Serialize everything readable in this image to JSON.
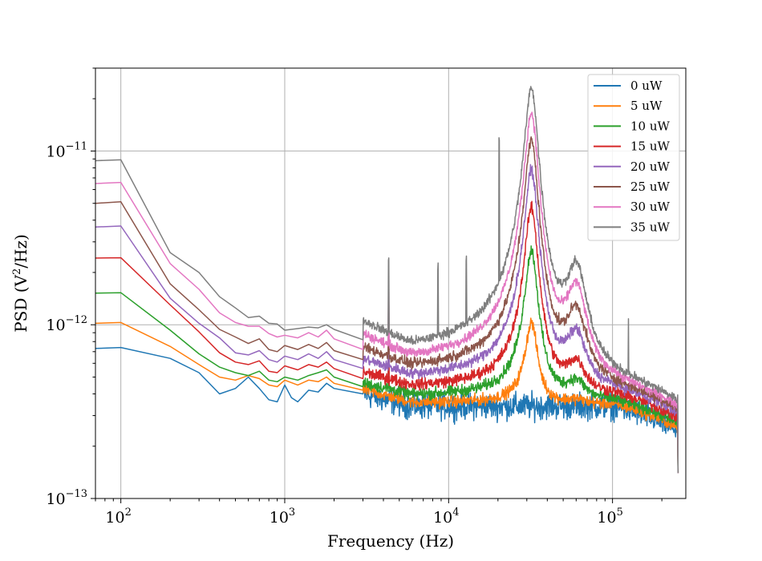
{
  "chart_data": {
    "type": "line",
    "title": "",
    "xlabel": "Frequency (Hz)",
    "ylabel_main": "PSD (V",
    "ylabel_sup": "2",
    "ylabel_tail": "/Hz)",
    "xscale": "log",
    "yscale": "log",
    "xlim": [
      70,
      280000
    ],
    "ylim": [
      1e-13,
      3e-11
    ],
    "grid": true,
    "legend_position": "top-right",
    "x_ticks": [
      {
        "value": 100,
        "base": "10",
        "exp": "2"
      },
      {
        "value": 1000,
        "base": "10",
        "exp": "3"
      },
      {
        "value": 10000,
        "base": "10",
        "exp": "4"
      },
      {
        "value": 100000,
        "base": "10",
        "exp": "5"
      }
    ],
    "y_ticks": [
      {
        "value": 1e-13,
        "base": "10",
        "exp": "−13"
      },
      {
        "value": 1e-12,
        "base": "10",
        "exp": "−12"
      },
      {
        "value": 1e-11,
        "base": "10",
        "exp": "−11"
      }
    ],
    "series": [
      {
        "name": "0 uW",
        "color": "#1f77b4",
        "low_points": [
          [
            70,
            7.3e-13
          ],
          [
            100,
            7.4e-13
          ],
          [
            200,
            6.4e-13
          ],
          [
            300,
            5.3e-13
          ],
          [
            400,
            4e-13
          ],
          [
            500,
            4.3e-13
          ],
          [
            600,
            5e-13
          ],
          [
            700,
            4.3e-13
          ],
          [
            800,
            3.7e-13
          ],
          [
            900,
            3.6e-13
          ],
          [
            1000,
            4.5e-13
          ],
          [
            1100,
            3.8e-13
          ],
          [
            1200,
            3.6e-13
          ],
          [
            1400,
            4.2e-13
          ],
          [
            1600,
            4.1e-13
          ],
          [
            1800,
            4.6e-13
          ],
          [
            2000,
            4.3e-13
          ],
          [
            3000,
            4e-13
          ]
        ],
        "baseline": 3.4e-13,
        "peak_amp": 0.0,
        "harm_amp": 0.0,
        "spikes": [],
        "noise": 0.22
      },
      {
        "name": "5 uW",
        "color": "#ff7f0e",
        "low_points": [
          [
            70,
            1.02e-12
          ],
          [
            100,
            1.03e-12
          ],
          [
            200,
            7.5e-13
          ],
          [
            300,
            5.9e-13
          ],
          [
            400,
            5e-13
          ],
          [
            500,
            4.8e-13
          ],
          [
            600,
            5.1e-13
          ],
          [
            700,
            4.9e-13
          ],
          [
            800,
            4.5e-13
          ],
          [
            900,
            4.4e-13
          ],
          [
            1000,
            4.8e-13
          ],
          [
            1200,
            4.5e-13
          ],
          [
            1400,
            4.8e-13
          ],
          [
            1600,
            4.7e-13
          ],
          [
            1800,
            5e-13
          ],
          [
            2000,
            4.6e-13
          ],
          [
            3000,
            4.2e-13
          ]
        ],
        "baseline": 3.5e-13,
        "peak_amp": 6.8e-13,
        "harm_amp": 2e-14,
        "spikes": [],
        "noise": 0.1
      },
      {
        "name": "10 uW",
        "color": "#2ca02c",
        "low_points": [
          [
            70,
            1.52e-12
          ],
          [
            100,
            1.53e-12
          ],
          [
            200,
            9.3e-13
          ],
          [
            300,
            6.8e-13
          ],
          [
            400,
            5.7e-13
          ],
          [
            500,
            5.3e-13
          ],
          [
            600,
            5.1e-13
          ],
          [
            700,
            5.4e-13
          ],
          [
            800,
            4.8e-13
          ],
          [
            900,
            4.7e-13
          ],
          [
            1000,
            5e-13
          ],
          [
            1200,
            4.8e-13
          ],
          [
            1400,
            5.1e-13
          ],
          [
            1600,
            5.3e-13
          ],
          [
            1800,
            5.5e-13
          ],
          [
            2000,
            5e-13
          ],
          [
            3000,
            4.4e-13
          ]
        ],
        "baseline": 3.7e-13,
        "peak_amp": 2.3e-12,
        "harm_amp": 1e-13,
        "spikes": [
          [
            4300,
            5e-13
          ]
        ],
        "noise": 0.1
      },
      {
        "name": "15 uW",
        "color": "#d62728",
        "low_points": [
          [
            70,
            2.42e-12
          ],
          [
            100,
            2.43e-12
          ],
          [
            200,
            1.3e-12
          ],
          [
            300,
            9.1e-13
          ],
          [
            400,
            6.9e-13
          ],
          [
            500,
            6.1e-13
          ],
          [
            600,
            5.9e-13
          ],
          [
            700,
            6.2e-13
          ],
          [
            800,
            5.4e-13
          ],
          [
            900,
            5.3e-13
          ],
          [
            1000,
            5.8e-13
          ],
          [
            1200,
            5.5e-13
          ],
          [
            1400,
            5.9e-13
          ],
          [
            1600,
            5.7e-13
          ],
          [
            1800,
            6.1e-13
          ],
          [
            2000,
            5.6e-13
          ],
          [
            3000,
            4.9e-13
          ]
        ],
        "baseline": 4e-13,
        "peak_amp": 4.3e-12,
        "harm_amp": 2e-13,
        "spikes": [
          [
            4300,
            6e-13
          ]
        ],
        "noise": 0.1
      },
      {
        "name": "20 uW",
        "color": "#9467bd",
        "low_points": [
          [
            70,
            3.65e-12
          ],
          [
            100,
            3.7e-12
          ],
          [
            200,
            1.42e-12
          ],
          [
            300,
            1.02e-12
          ],
          [
            400,
            8.4e-13
          ],
          [
            500,
            6.9e-13
          ],
          [
            600,
            6.7e-13
          ],
          [
            700,
            7.1e-13
          ],
          [
            800,
            6.3e-13
          ],
          [
            900,
            6.1e-13
          ],
          [
            1000,
            6.6e-13
          ],
          [
            1200,
            6.3e-13
          ],
          [
            1400,
            6.8e-13
          ],
          [
            1600,
            6.4e-13
          ],
          [
            1800,
            7e-13
          ],
          [
            2000,
            6.3e-13
          ],
          [
            3000,
            5.6e-13
          ]
        ],
        "baseline": 4.3e-13,
        "peak_amp": 7.3e-12,
        "harm_amp": 4.5e-13,
        "spikes": [
          [
            4300,
            7e-13
          ]
        ],
        "noise": 0.09
      },
      {
        "name": "25 uW",
        "color": "#8c564b",
        "low_points": [
          [
            70,
            5e-12
          ],
          [
            100,
            5.1e-12
          ],
          [
            200,
            1.72e-12
          ],
          [
            300,
            1.22e-12
          ],
          [
            400,
            9.4e-13
          ],
          [
            500,
            8.5e-13
          ],
          [
            600,
            7.8e-13
          ],
          [
            700,
            8.3e-13
          ],
          [
            800,
            7.2e-13
          ],
          [
            900,
            7e-13
          ],
          [
            1000,
            7.6e-13
          ],
          [
            1200,
            7.2e-13
          ],
          [
            1400,
            7.7e-13
          ],
          [
            1600,
            7.3e-13
          ],
          [
            1800,
            7.9e-13
          ],
          [
            2000,
            7.1e-13
          ],
          [
            3000,
            6.3e-13
          ]
        ],
        "baseline": 4.5e-13,
        "peak_amp": 1.1e-11,
        "harm_amp": 7.5e-13,
        "spikes": [
          [
            4300,
            8e-13
          ]
        ],
        "noise": 0.09
      },
      {
        "name": "30 uW",
        "color": "#e377c2",
        "low_points": [
          [
            70,
            6.5e-12
          ],
          [
            100,
            6.6e-12
          ],
          [
            200,
            2.25e-12
          ],
          [
            300,
            1.6e-12
          ],
          [
            400,
            1.17e-12
          ],
          [
            500,
            1.03e-12
          ],
          [
            600,
            9.8e-13
          ],
          [
            700,
            9.8e-13
          ],
          [
            800,
            8.9e-13
          ],
          [
            900,
            8.5e-13
          ],
          [
            1000,
            8.7e-13
          ],
          [
            1200,
            8.4e-13
          ],
          [
            1400,
            9e-13
          ],
          [
            1600,
            8.5e-13
          ],
          [
            1800,
            9.3e-13
          ],
          [
            2000,
            8.3e-13
          ],
          [
            3000,
            7.2e-13
          ]
        ],
        "baseline": 4.7e-13,
        "peak_amp": 1.6e-11,
        "harm_amp": 1.15e-12,
        "spikes": [
          [
            4300,
            9e-13
          ]
        ],
        "noise": 0.08
      },
      {
        "name": "35 uW",
        "color": "#7f7f7f",
        "low_points": [
          [
            70,
            8.8e-12
          ],
          [
            100,
            8.9e-12
          ],
          [
            200,
            2.6e-12
          ],
          [
            300,
            2e-12
          ],
          [
            400,
            1.45e-12
          ],
          [
            500,
            1.25e-12
          ],
          [
            600,
            1.1e-12
          ],
          [
            700,
            1.12e-12
          ],
          [
            800,
            1.02e-12
          ],
          [
            900,
            1.01e-12
          ],
          [
            1000,
            9.3e-13
          ],
          [
            1200,
            9.5e-13
          ],
          [
            1400,
            9.7e-13
          ],
          [
            1600,
            9.6e-13
          ],
          [
            1800,
            1e-12
          ],
          [
            2000,
            9.4e-13
          ],
          [
            3000,
            8.2e-13
          ]
        ],
        "baseline": 5e-13,
        "peak_amp": 2.25e-11,
        "harm_amp": 1.6e-12,
        "spikes": [
          [
            4300,
            1.5e-12
          ],
          [
            8600,
            1.3e-12
          ],
          [
            12800,
            1.3e-12
          ],
          [
            20300,
            1e-11
          ],
          [
            125000,
            5.3e-13
          ]
        ],
        "noise": 0.08
      }
    ]
  }
}
